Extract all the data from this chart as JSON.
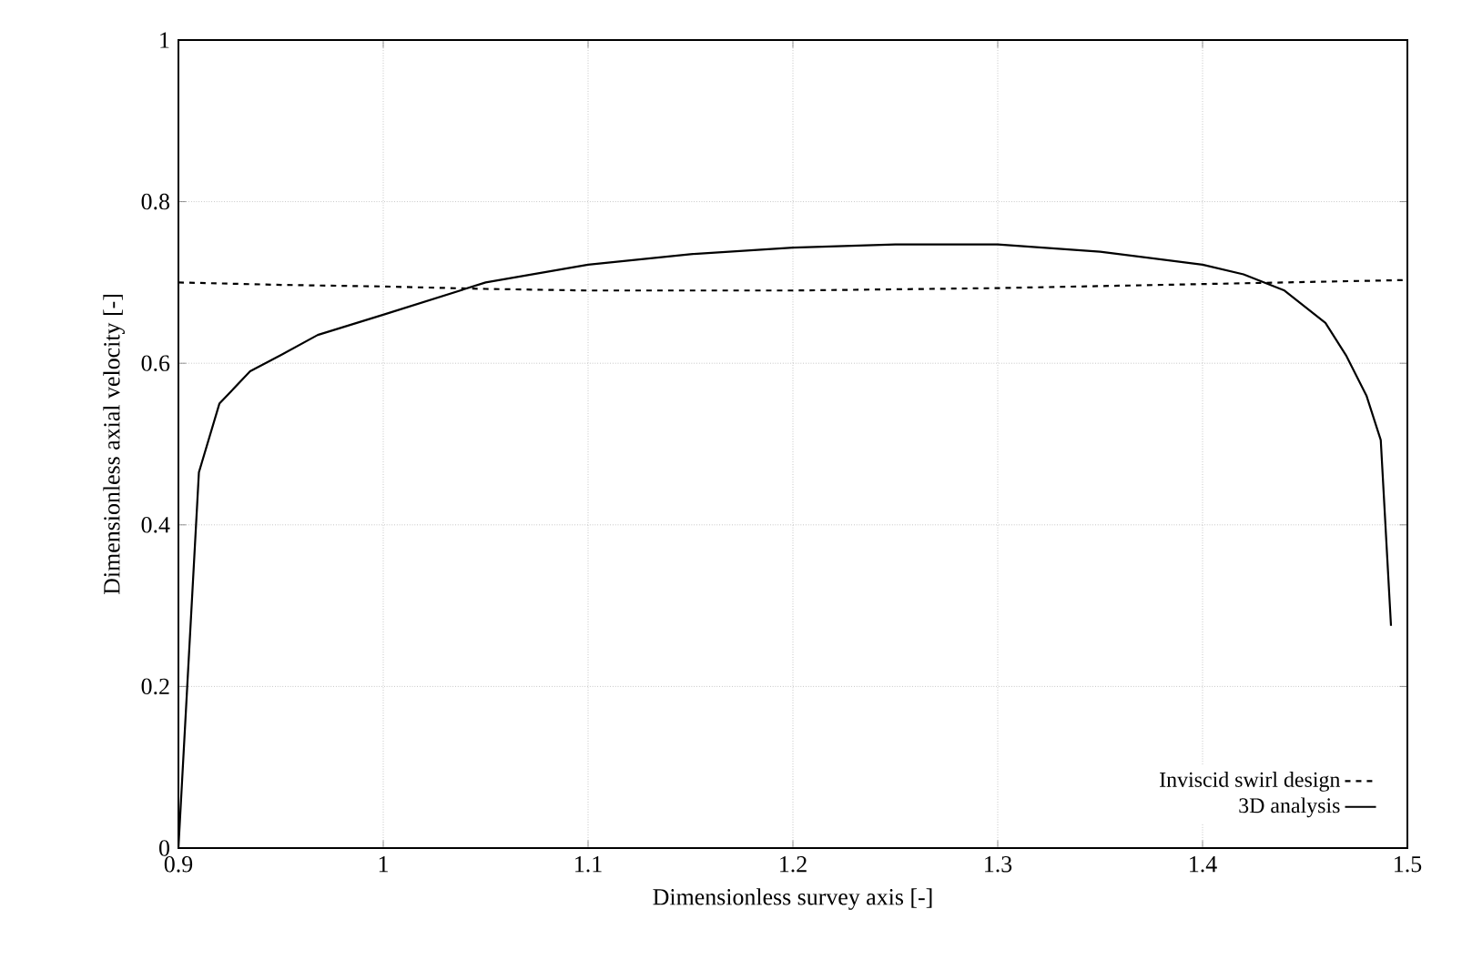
{
  "chart_data": {
    "type": "line",
    "xlabel": "Dimensionless survey axis [-]",
    "ylabel": "Dimensionless axial velocity [-]",
    "xlim": [
      0.9,
      1.5
    ],
    "ylim": [
      0,
      1
    ],
    "xticks": [
      {
        "value": 0.9,
        "label": "0.9"
      },
      {
        "value": 1,
        "label": "1"
      },
      {
        "value": 1.1,
        "label": "1.1"
      },
      {
        "value": 1.2,
        "label": "1.2"
      },
      {
        "value": 1.3,
        "label": "1.3"
      },
      {
        "value": 1.4,
        "label": "1.4"
      },
      {
        "value": 1.5,
        "label": "1.5"
      }
    ],
    "yticks": [
      {
        "value": 0,
        "label": "0"
      },
      {
        "value": 0.2,
        "label": "0.2"
      },
      {
        "value": 0.4,
        "label": "0.4"
      },
      {
        "value": 0.6,
        "label": "0.6"
      },
      {
        "value": 0.8,
        "label": "0.8"
      },
      {
        "value": 1,
        "label": "1"
      }
    ],
    "grid": true,
    "legend": "bottom right",
    "series": [
      {
        "name": "Inviscid swirl design",
        "color": "#000000",
        "line_style": "dashed",
        "x": [
          0.9,
          0.95,
          1.0,
          1.05,
          1.1,
          1.2,
          1.3,
          1.4,
          1.5
        ],
        "values": [
          0.7,
          0.697,
          0.695,
          0.692,
          0.69,
          0.69,
          0.693,
          0.698,
          0.703
        ]
      },
      {
        "name": "3D analysis",
        "color": "#000000",
        "line_style": "solid",
        "x": [
          0.9,
          0.91,
          0.92,
          0.935,
          0.95,
          0.968,
          1.0,
          1.05,
          1.1,
          1.15,
          1.2,
          1.25,
          1.3,
          1.35,
          1.4,
          1.42,
          1.44,
          1.46,
          1.47,
          1.48,
          1.487,
          1.492
        ],
        "values": [
          0,
          0.465,
          0.55,
          0.59,
          0.61,
          0.635,
          0.66,
          0.7,
          0.722,
          0.735,
          0.743,
          0.747,
          0.747,
          0.738,
          0.722,
          0.71,
          0.69,
          0.65,
          0.61,
          0.56,
          0.505,
          0.275
        ]
      }
    ]
  }
}
